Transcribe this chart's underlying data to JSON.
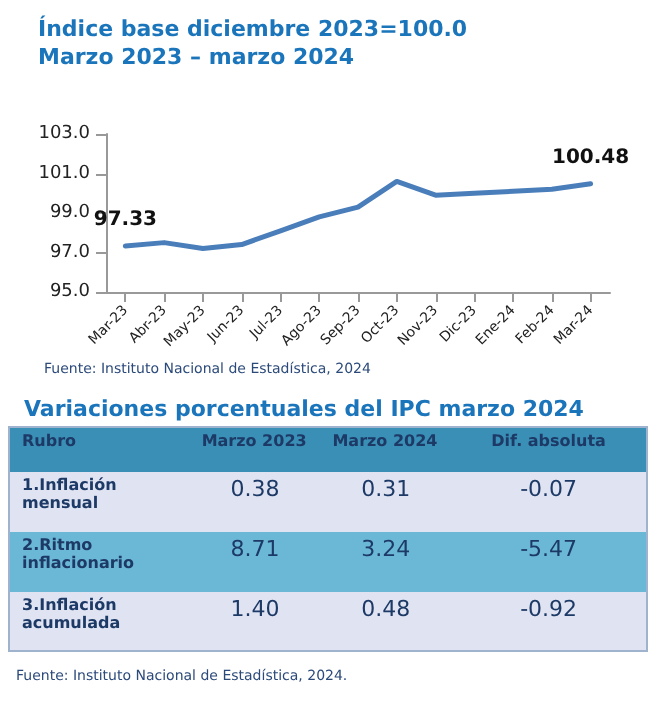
{
  "chart_data": [
    {
      "type": "line",
      "title": "Índice base diciembre 2023=100.0",
      "subtitle": "Marzo 2023 – marzo 2024",
      "categories": [
        "Mar-23",
        "Abr-23",
        "May-23",
        "Jun-23",
        "Jul-23",
        "Ago-23",
        "Sep-23",
        "Oct-23",
        "Nov-23",
        "Dic-23",
        "Ene-24",
        "Feb-24",
        "Mar-24"
      ],
      "series": [
        {
          "color": "#4a7ebb",
          "values": [
            97.33,
            97.5,
            97.2,
            97.4,
            98.1,
            98.8,
            99.3,
            100.6,
            99.9,
            100.0,
            100.1,
            100.2,
            100.48
          ],
          "value_labels": [
            "97.33",
            null,
            null,
            null,
            null,
            null,
            null,
            null,
            null,
            null,
            null,
            null,
            "100.48"
          ]
        }
      ],
      "ylim": [
        95,
        103
      ],
      "yticks": [
        {
          "value": 95,
          "label": "95.0"
        },
        {
          "value": 97,
          "label": "97.0"
        },
        {
          "value": 99,
          "label": "99.0"
        },
        {
          "value": 101,
          "label": "101.0"
        },
        {
          "value": 103,
          "label": "103.0"
        }
      ],
      "grid": false,
      "marker": "none",
      "line_style": "solid",
      "annotations": [
        "Fuente: Instituto Nacional de Estadística, 2024"
      ]
    },
    {
      "type": "other",
      "title": "Variaciones porcentuales del IPC marzo 2024",
      "annotations": [
        "Rubro",
        "Marzo 2023",
        "Marzo 2024",
        "Dif. absoluta",
        "1.Inflación mensual",
        "0.38",
        "0.31",
        "-0.07",
        "2.Ritmo inflacionario",
        "8.71",
        "3.24",
        "-5.47",
        "3.Inflación acumulada",
        "1.40",
        "0.48",
        "-0.92",
        "Fuente: Instituto Nacional de Estadística, 2024."
      ]
    }
  ]
}
